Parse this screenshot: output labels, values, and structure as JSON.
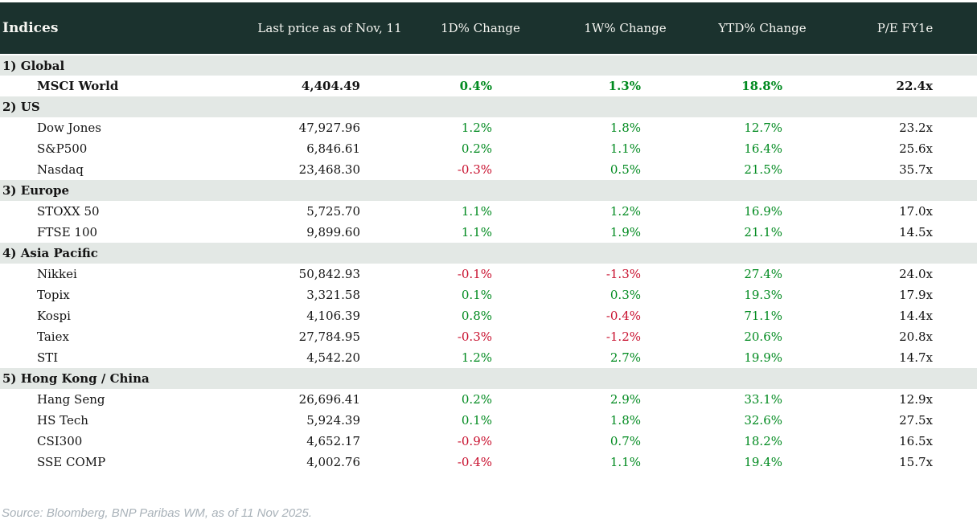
{
  "chart_data": {
    "type": "table",
    "title": "Indices",
    "columns": [
      "Indices",
      "Last price as of Nov, 11",
      "1D% Change",
      "1W% Change",
      "YTD% Change",
      "P/E FY1e"
    ],
    "sections": [
      {
        "label": "1) Global",
        "rows": [
          {
            "name": "MSCI World",
            "last_price": "4,404.49",
            "chg_1d": "0.4%",
            "chg_1w": "1.3%",
            "chg_ytd": "18.8%",
            "pe_fy1e": "22.4x",
            "emphasis": true
          }
        ]
      },
      {
        "label": "2) US",
        "rows": [
          {
            "name": "Dow Jones",
            "last_price": "47,927.96",
            "chg_1d": "1.2%",
            "chg_1w": "1.8%",
            "chg_ytd": "12.7%",
            "pe_fy1e": "23.2x"
          },
          {
            "name": "S&P500",
            "last_price": "6,846.61",
            "chg_1d": "0.2%",
            "chg_1w": "1.1%",
            "chg_ytd": "16.4%",
            "pe_fy1e": "25.6x"
          },
          {
            "name": "Nasdaq",
            "last_price": "23,468.30",
            "chg_1d": "-0.3%",
            "chg_1w": "0.5%",
            "chg_ytd": "21.5%",
            "pe_fy1e": "35.7x"
          }
        ]
      },
      {
        "label": "3) Europe",
        "rows": [
          {
            "name": "STOXX 50",
            "last_price": "5,725.70",
            "chg_1d": "1.1%",
            "chg_1w": "1.2%",
            "chg_ytd": "16.9%",
            "pe_fy1e": "17.0x"
          },
          {
            "name": "FTSE 100",
            "last_price": "9,899.60",
            "chg_1d": "1.1%",
            "chg_1w": "1.9%",
            "chg_ytd": "21.1%",
            "pe_fy1e": "14.5x"
          }
        ]
      },
      {
        "label": "4) Asia Pacific",
        "rows": [
          {
            "name": "Nikkei",
            "last_price": "50,842.93",
            "chg_1d": "-0.1%",
            "chg_1w": "-1.3%",
            "chg_ytd": "27.4%",
            "pe_fy1e": "24.0x"
          },
          {
            "name": "Topix",
            "last_price": "3,321.58",
            "chg_1d": "0.1%",
            "chg_1w": "0.3%",
            "chg_ytd": "19.3%",
            "pe_fy1e": "17.9x"
          },
          {
            "name": "Kospi",
            "last_price": "4,106.39",
            "chg_1d": "0.8%",
            "chg_1w": "-0.4%",
            "chg_ytd": "71.1%",
            "pe_fy1e": "14.4x"
          },
          {
            "name": "Taiex",
            "last_price": "27,784.95",
            "chg_1d": "-0.3%",
            "chg_1w": "-1.2%",
            "chg_ytd": "20.6%",
            "pe_fy1e": "20.8x"
          },
          {
            "name": "STI",
            "last_price": "4,542.20",
            "chg_1d": "1.2%",
            "chg_1w": "2.7%",
            "chg_ytd": "19.9%",
            "pe_fy1e": "14.7x"
          }
        ]
      },
      {
        "label": "5) Hong Kong / China",
        "rows": [
          {
            "name": "Hang Seng",
            "last_price": "26,696.41",
            "chg_1d": "0.2%",
            "chg_1w": "2.9%",
            "chg_ytd": "33.1%",
            "pe_fy1e": "12.9x"
          },
          {
            "name": "HS Tech",
            "last_price": "5,924.39",
            "chg_1d": "0.1%",
            "chg_1w": "1.8%",
            "chg_ytd": "32.6%",
            "pe_fy1e": "27.5x"
          },
          {
            "name": "CSI300",
            "last_price": "4,652.17",
            "chg_1d": "-0.9%",
            "chg_1w": "0.7%",
            "chg_ytd": "18.2%",
            "pe_fy1e": "16.5x"
          },
          {
            "name": "SSE COMP",
            "last_price": "4,002.76",
            "chg_1d": "-0.4%",
            "chg_1w": "1.1%",
            "chg_ytd": "19.4%",
            "pe_fy1e": "15.7x"
          }
        ]
      }
    ]
  },
  "source_note": "Source: Bloomberg, BNP Paribas WM, as of 11 Nov 2025.",
  "colors": {
    "header_bg": "#1b322e",
    "section_bg": "#e3e8e5",
    "positive": "#008a1f",
    "negative": "#c8102e",
    "source_text": "#a9b2b9"
  }
}
